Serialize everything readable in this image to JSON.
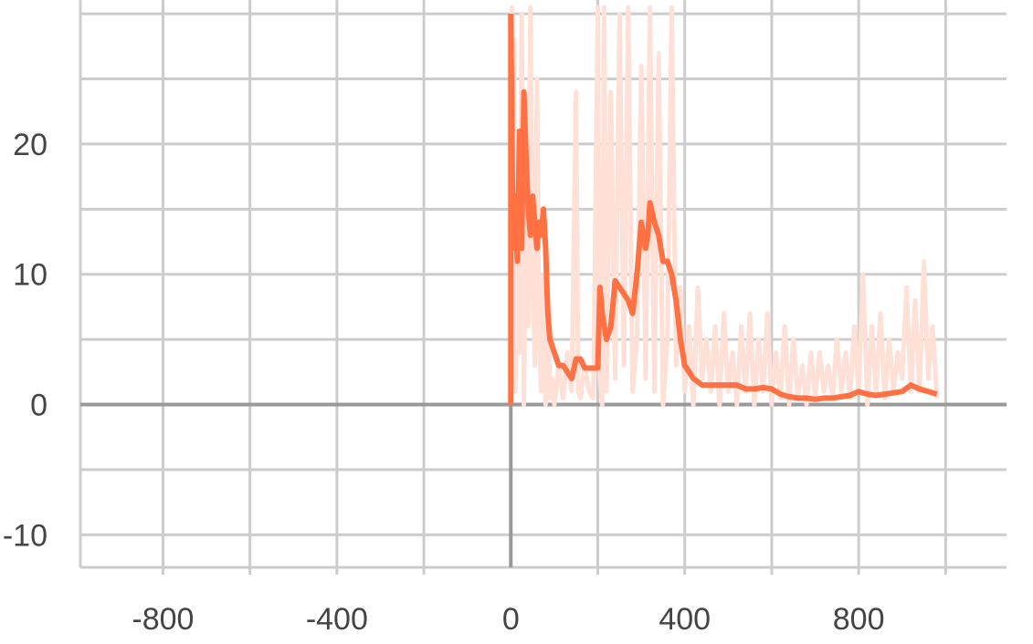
{
  "chart_data": {
    "type": "line",
    "title": "",
    "xlabel": "",
    "ylabel": "",
    "xlim": [
      -990,
      1140
    ],
    "ylim": [
      -12.5,
      30.5
    ],
    "x_ticks": [
      -800,
      -400,
      0,
      400,
      800
    ],
    "x_tick_labels": [
      "-800",
      "-400",
      "0",
      "400",
      "800"
    ],
    "x_minor_ticks": [
      -1000,
      -600,
      -200,
      200,
      600,
      1000
    ],
    "y_ticks": [
      -10,
      0,
      10,
      20
    ],
    "y_tick_labels": [
      "-10",
      "0",
      "10",
      "20"
    ],
    "y_minor_ticks": [
      -5,
      5,
      15,
      25,
      30
    ],
    "grid": true,
    "legend": "none",
    "colors": {
      "smoothed": "#ff7043",
      "raw": "#ffe0d6",
      "grid": "#cccccc",
      "zero_axis": "#999999"
    },
    "series": [
      {
        "x": [
          0,
          5,
          10,
          15,
          20,
          25,
          30,
          35,
          40,
          45,
          50,
          55,
          60,
          65,
          70,
          75,
          80,
          85,
          90,
          100,
          110,
          120,
          130,
          140,
          150,
          160,
          170,
          180,
          190,
          200,
          205,
          210,
          215,
          220,
          230,
          240,
          250,
          260,
          270,
          280,
          290,
          300,
          305,
          310,
          315,
          320,
          330,
          340,
          350,
          360,
          370,
          380,
          390,
          400,
          420,
          440,
          460,
          480,
          500,
          520,
          540,
          560,
          580,
          600,
          620,
          640,
          660,
          680,
          700,
          720,
          740,
          760,
          780,
          800,
          820,
          840,
          860,
          880,
          900,
          920,
          940,
          960,
          980
        ],
        "y": [
          30,
          12,
          16,
          11,
          21,
          12,
          24,
          19,
          15,
          13,
          16,
          14,
          12,
          14,
          13,
          15,
          12,
          7,
          5,
          4,
          3,
          3,
          2.5,
          2,
          3.5,
          3.5,
          2.8,
          2.8,
          2.8,
          2.8,
          9,
          7,
          6,
          5,
          6,
          9.5,
          9,
          8.5,
          8,
          7,
          10,
          14,
          13,
          12,
          13,
          15.5,
          14,
          13,
          11,
          11,
          10,
          8,
          5,
          3,
          2,
          1.5,
          1.5,
          1.5,
          1.5,
          1.5,
          1.2,
          1.2,
          1.3,
          1.2,
          0.8,
          0.6,
          0.5,
          0.5,
          0.4,
          0.5,
          0.5,
          0.6,
          0.7,
          1,
          0.8,
          0.7,
          0.8,
          0.9,
          1,
          1.5,
          1.2,
          1,
          0.8
        ]
      },
      {
        "x": [
          0,
          2,
          5,
          8,
          10,
          15,
          20,
          25,
          30,
          35,
          40,
          45,
          50,
          55,
          60,
          65,
          70,
          75,
          80,
          85,
          90,
          95,
          100,
          110,
          120,
          130,
          140,
          150,
          155,
          160,
          170,
          180,
          190,
          200,
          205,
          210,
          215,
          220,
          230,
          240,
          250,
          260,
          270,
          280,
          290,
          300,
          310,
          320,
          330,
          340,
          350,
          360,
          370,
          380,
          390,
          400,
          410,
          420,
          430,
          440,
          450,
          460,
          470,
          480,
          490,
          500,
          510,
          520,
          530,
          540,
          550,
          560,
          570,
          580,
          590,
          600,
          610,
          620,
          630,
          640,
          650,
          660,
          670,
          680,
          690,
          700,
          710,
          720,
          730,
          740,
          750,
          760,
          770,
          780,
          790,
          800,
          810,
          820,
          830,
          840,
          850,
          860,
          870,
          880,
          890,
          900,
          910,
          920,
          930,
          940,
          950,
          960,
          970,
          980
        ],
        "y": [
          0,
          31,
          2,
          28,
          1,
          14,
          4,
          30,
          0,
          18,
          6,
          31,
          12,
          3,
          25,
          5,
          1,
          10,
          0,
          9,
          0.5,
          2,
          0,
          3,
          0.5,
          4,
          1,
          24,
          1,
          0.5,
          3,
          1,
          0.5,
          31,
          2,
          0,
          31,
          1,
          24,
          2,
          30,
          3,
          31,
          1,
          5,
          26,
          2,
          31,
          1,
          27,
          0,
          5,
          31,
          3,
          9,
          1,
          6,
          0,
          9,
          2,
          5,
          1,
          6,
          0,
          7,
          1,
          4,
          0,
          6,
          1,
          7,
          0,
          5,
          1,
          7,
          0,
          4,
          0.5,
          6,
          0,
          5,
          0.5,
          3,
          0,
          4,
          0.5,
          4,
          1,
          3,
          0.5,
          5,
          1,
          4,
          0.5,
          6,
          1,
          10,
          0,
          6,
          1,
          7,
          0.5,
          5,
          1,
          4,
          2,
          9,
          1,
          8,
          1,
          11,
          2,
          6,
          0.5
        ]
      }
    ]
  }
}
